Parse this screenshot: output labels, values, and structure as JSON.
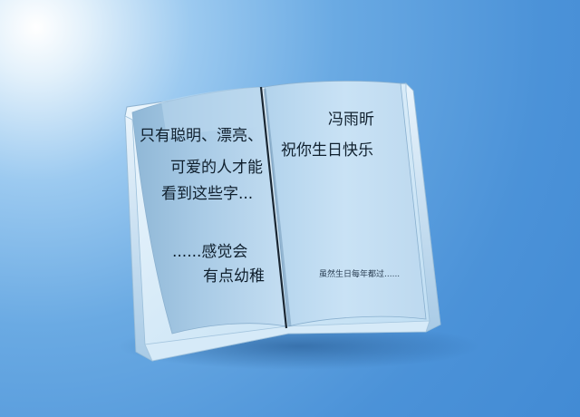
{
  "left_page": {
    "line1": "只有聪明、漂亮、",
    "line2": "可爱的人才能",
    "line3": "看到这些字...",
    "line4": "......感觉会",
    "line5": "有点幼稚"
  },
  "right_page": {
    "line1": "冯雨昕",
    "line2": "祝你生日快乐",
    "line3": "虽然生日每年都过......"
  }
}
